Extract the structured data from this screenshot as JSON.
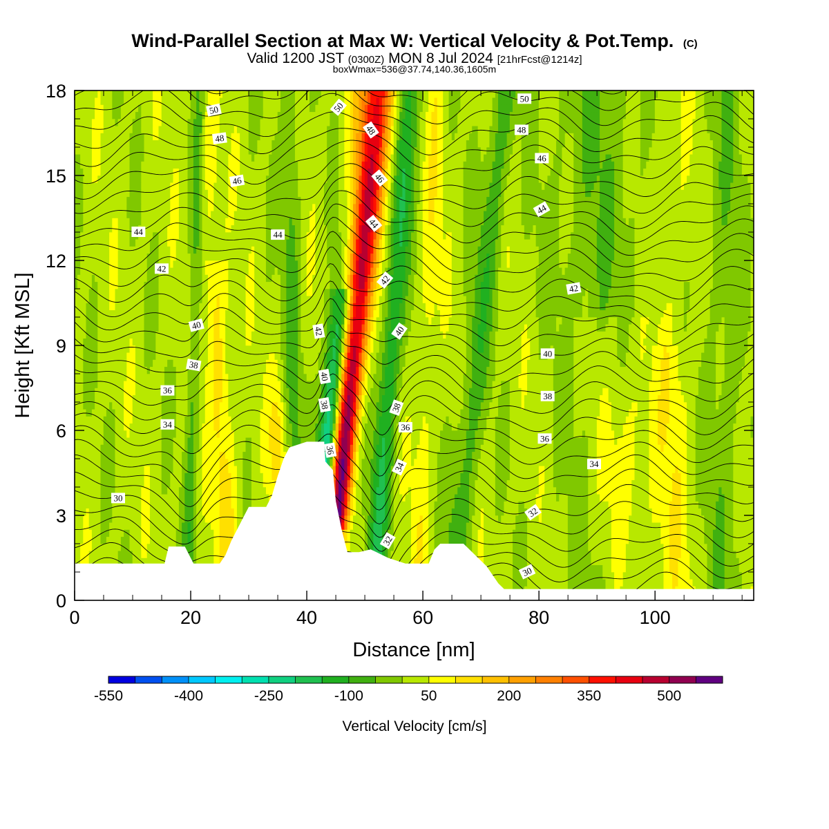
{
  "title": {
    "main": "Wind-Parallel Section at Max W: Vertical Velocity & Pot.Temp.",
    "copyright": "(C)",
    "valid_prefix": "Valid 1200 JST",
    "valid_utc": "(0300Z)",
    "valid_date": "MON 8 Jul 2024",
    "forecast": "[21hrFcst@1214z]",
    "boxinfo": "boxWmax=536@37.74,140.36,1605m"
  },
  "chart_data": {
    "type": "heatmap",
    "xlabel": "Distance [nm]",
    "ylabel": "Height [Kft MSL]",
    "xlim": [
      0,
      117
    ],
    "ylim": [
      0,
      18
    ],
    "xticks": [
      0,
      20,
      40,
      60,
      80,
      100
    ],
    "yticks": [
      0,
      3,
      6,
      9,
      12,
      15,
      18
    ],
    "colorbar": {
      "label": "Vertical Velocity [cm/s]",
      "min": -550,
      "max": 600,
      "step": 50,
      "tick_labels": [
        "-550",
        "-400",
        "-250",
        "-100",
        "50",
        "200",
        "350",
        "500"
      ],
      "tick_values": [
        -550,
        -400,
        -250,
        -100,
        50,
        200,
        350,
        500
      ],
      "colors": [
        "#0000e0",
        "#0050f0",
        "#0090f8",
        "#00c8ff",
        "#00f0f0",
        "#00e0b0",
        "#10d080",
        "#20c050",
        "#20b020",
        "#40b010",
        "#80c800",
        "#b8e800",
        "#ffff00",
        "#ffe000",
        "#ffc000",
        "#ffa000",
        "#ff8000",
        "#ff5000",
        "#ff1000",
        "#e80010",
        "#b80030",
        "#900050",
        "#600080"
      ]
    },
    "terrain_kft": [
      [
        0,
        1.3
      ],
      [
        15.5,
        1.3
      ],
      [
        16.2,
        1.9
      ],
      [
        19,
        1.9
      ],
      [
        20.5,
        1.3
      ],
      [
        25,
        1.3
      ],
      [
        26,
        1.6
      ],
      [
        27,
        2.1
      ],
      [
        28,
        2.5
      ],
      [
        29,
        2.9
      ],
      [
        30,
        3.3
      ],
      [
        33,
        3.3
      ],
      [
        34,
        3.7
      ],
      [
        35,
        4.4
      ],
      [
        36,
        5.0
      ],
      [
        37,
        5.4
      ],
      [
        40,
        5.6
      ],
      [
        43,
        5.6
      ],
      [
        43.2,
        4.9
      ],
      [
        44.5,
        4.6
      ],
      [
        45,
        3.5
      ],
      [
        46,
        2.5
      ],
      [
        47,
        1.7
      ],
      [
        49,
        1.7
      ],
      [
        51,
        1.8
      ],
      [
        52,
        1.7
      ],
      [
        54,
        1.5
      ],
      [
        57,
        1.3
      ],
      [
        61,
        1.3
      ],
      [
        62,
        1.8
      ],
      [
        63,
        2.0
      ],
      [
        67,
        2.0
      ],
      [
        69,
        1.6
      ],
      [
        71,
        1.2
      ],
      [
        72,
        0.9
      ],
      [
        73,
        0.6
      ],
      [
        74,
        0.4
      ],
      [
        117,
        0.4
      ]
    ],
    "theta_levels": [
      30,
      32,
      34,
      36,
      38,
      40,
      42,
      44,
      46,
      48,
      50
    ],
    "theta_labels": [
      {
        "text": "50",
        "x": 24,
        "y": 17.3,
        "angle": -12
      },
      {
        "text": "48",
        "x": 25,
        "y": 16.3,
        "angle": -8
      },
      {
        "text": "46",
        "x": 28,
        "y": 14.8,
        "angle": -10
      },
      {
        "text": "44",
        "x": 11,
        "y": 13.0,
        "angle": 0
      },
      {
        "text": "42",
        "x": 15,
        "y": 11.7,
        "angle": 0
      },
      {
        "text": "40",
        "x": 21,
        "y": 9.7,
        "angle": -15
      },
      {
        "text": "38",
        "x": 20.5,
        "y": 8.3,
        "angle": 10
      },
      {
        "text": "36",
        "x": 16,
        "y": 7.4,
        "angle": 0
      },
      {
        "text": "34",
        "x": 16,
        "y": 6.2,
        "angle": 0
      },
      {
        "text": "30",
        "x": 7.5,
        "y": 3.6,
        "angle": 0
      },
      {
        "text": "44",
        "x": 35,
        "y": 12.9,
        "angle": 0
      },
      {
        "text": "50",
        "x": 45.5,
        "y": 17.4,
        "angle": -50
      },
      {
        "text": "48",
        "x": 51,
        "y": 16.6,
        "angle": 55
      },
      {
        "text": "46",
        "x": 52.5,
        "y": 14.9,
        "angle": 50
      },
      {
        "text": "44",
        "x": 51.5,
        "y": 13.3,
        "angle": 50
      },
      {
        "text": "42",
        "x": 53.5,
        "y": 11.3,
        "angle": -50
      },
      {
        "text": "40",
        "x": 56,
        "y": 9.5,
        "angle": -55
      },
      {
        "text": "42",
        "x": 42,
        "y": 9.5,
        "angle": 80
      },
      {
        "text": "40",
        "x": 43,
        "y": 7.9,
        "angle": 80
      },
      {
        "text": "38",
        "x": 43,
        "y": 6.9,
        "angle": 80
      },
      {
        "text": "36",
        "x": 44,
        "y": 5.3,
        "angle": 80
      },
      {
        "text": "38",
        "x": 55.5,
        "y": 6.8,
        "angle": -70
      },
      {
        "text": "36",
        "x": 57,
        "y": 6.1,
        "angle": 0
      },
      {
        "text": "34",
        "x": 56,
        "y": 4.7,
        "angle": -65
      },
      {
        "text": "32",
        "x": 54,
        "y": 2.1,
        "angle": -60
      },
      {
        "text": "50",
        "x": 77.5,
        "y": 17.7,
        "angle": 0
      },
      {
        "text": "48",
        "x": 77,
        "y": 16.6,
        "angle": 0
      },
      {
        "text": "46",
        "x": 80.5,
        "y": 15.6,
        "angle": 0
      },
      {
        "text": "44",
        "x": 80.5,
        "y": 13.8,
        "angle": -30
      },
      {
        "text": "42",
        "x": 86,
        "y": 11.0,
        "angle": -10
      },
      {
        "text": "40",
        "x": 81.5,
        "y": 8.7,
        "angle": 0
      },
      {
        "text": "38",
        "x": 81.5,
        "y": 7.2,
        "angle": 0
      },
      {
        "text": "36",
        "x": 81,
        "y": 5.7,
        "angle": 0
      },
      {
        "text": "34",
        "x": 89.5,
        "y": 4.8,
        "angle": 0
      },
      {
        "text": "32",
        "x": 79,
        "y": 3.1,
        "angle": -35
      },
      {
        "text": "30",
        "x": 78,
        "y": 1.0,
        "angle": -25
      }
    ]
  }
}
